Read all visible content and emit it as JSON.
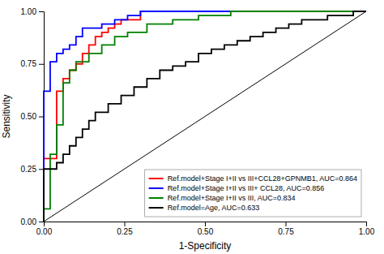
{
  "chart_data": {
    "type": "step",
    "xlabel": "1-Specificity",
    "ylabel": "Sensitivity",
    "xlim": [
      0,
      1
    ],
    "ylim": [
      0,
      1
    ],
    "xticks": [
      {
        "value": 0,
        "label": "0.00"
      },
      {
        "value": 0.25,
        "label": "0.25"
      },
      {
        "value": 0.5,
        "label": "0.50"
      },
      {
        "value": 0.75,
        "label": "0.75"
      },
      {
        "value": 1,
        "label": "1.00"
      }
    ],
    "yticks": [
      {
        "value": 0,
        "label": "0.00"
      },
      {
        "value": 0.25,
        "label": "0.25"
      },
      {
        "value": 0.5,
        "label": "0.50"
      },
      {
        "value": 0.75,
        "label": "0.75"
      },
      {
        "value": 1,
        "label": "1.00"
      }
    ],
    "grid": false,
    "legend": "lower right",
    "series": [
      {
        "type": "line",
        "color": "#000000",
        "x": [
          0,
          1
        ],
        "values": [
          0,
          1
        ]
      },
      {
        "name": "Ref.model+Stage I+II vs III+CCL28+GPNMB1, AUC=0.864",
        "color": "#FF0000",
        "x": [
          0.0,
          0.0,
          0.02,
          0.04,
          0.06,
          0.08,
          0.1,
          0.12,
          0.14,
          0.16,
          0.18,
          0.2,
          0.22,
          0.24,
          0.26,
          0.3,
          0.36,
          0.44,
          0.5,
          0.58,
          0.64,
          0.72,
          0.8,
          0.88,
          0.96,
          1.0
        ],
        "values": [
          0.0,
          0.3,
          0.3,
          0.62,
          0.68,
          0.72,
          0.75,
          0.8,
          0.84,
          0.88,
          0.9,
          0.92,
          0.94,
          0.96,
          0.96,
          1.0,
          1.0,
          1.0,
          1.0,
          1.0,
          1.0,
          1.0,
          1.0,
          1.0,
          1.0,
          1.0
        ]
      },
      {
        "name": "Ref.model+Stage I+II vs III+ CCL28, AUC=0.856",
        "color": "#0000FF",
        "x": [
          0.0,
          0.0,
          0.02,
          0.04,
          0.06,
          0.08,
          0.1,
          0.12,
          0.14,
          0.18,
          0.22,
          0.26,
          0.3,
          0.36,
          0.44,
          0.52,
          0.6,
          0.7,
          0.8,
          0.88,
          0.94,
          1.0
        ],
        "values": [
          0.0,
          0.62,
          0.76,
          0.8,
          0.82,
          0.84,
          0.88,
          0.92,
          0.92,
          0.94,
          0.96,
          0.98,
          1.0,
          1.0,
          1.0,
          1.0,
          1.0,
          1.0,
          1.0,
          1.0,
          1.0,
          1.0
        ]
      },
      {
        "name": "Ref.model+Stage I+II vs III, AUC=0.834",
        "color": "#008000",
        "x": [
          0.0,
          0.0,
          0.02,
          0.04,
          0.06,
          0.08,
          0.1,
          0.14,
          0.18,
          0.22,
          0.26,
          0.32,
          0.4,
          0.48,
          0.58,
          0.66,
          0.78,
          0.86,
          0.94,
          1.0
        ],
        "values": [
          0.0,
          0.06,
          0.32,
          0.46,
          0.66,
          0.72,
          0.76,
          0.8,
          0.84,
          0.88,
          0.9,
          0.94,
          0.96,
          0.98,
          1.0,
          1.0,
          1.0,
          1.0,
          1.0,
          1.0
        ]
      },
      {
        "name": "Ref.model=Age, AUC=0.633",
        "color": "#000000",
        "x": [
          0.0,
          0.0,
          0.02,
          0.04,
          0.06,
          0.08,
          0.1,
          0.12,
          0.14,
          0.16,
          0.2,
          0.24,
          0.28,
          0.32,
          0.36,
          0.4,
          0.44,
          0.48,
          0.52,
          0.56,
          0.6,
          0.64,
          0.68,
          0.72,
          0.76,
          0.8,
          0.84,
          0.88,
          0.92,
          0.96,
          1.0
        ],
        "values": [
          0.0,
          0.25,
          0.25,
          0.28,
          0.32,
          0.36,
          0.4,
          0.44,
          0.48,
          0.52,
          0.56,
          0.6,
          0.64,
          0.68,
          0.72,
          0.74,
          0.76,
          0.8,
          0.82,
          0.84,
          0.86,
          0.88,
          0.9,
          0.92,
          0.94,
          0.96,
          0.96,
          0.98,
          0.98,
          1.0,
          1.0
        ]
      }
    ]
  }
}
